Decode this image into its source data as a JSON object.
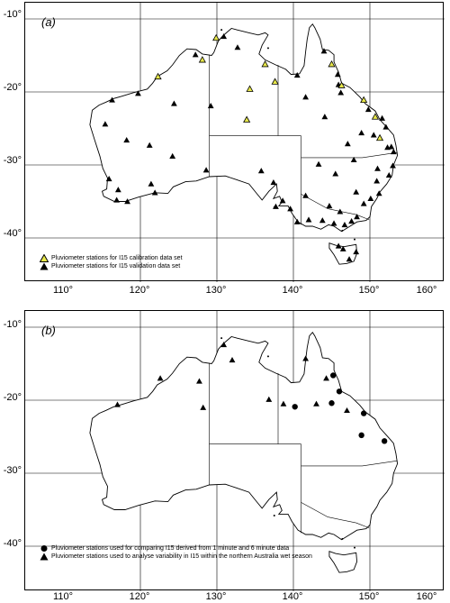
{
  "panels": [
    {
      "label": "(a)",
      "lat_ticks": [
        "-10°",
        "-20°",
        "-30°",
        "-40°"
      ],
      "legend": [
        {
          "symbol": "triangle-yellow-icon",
          "text": "Pluviometer stations for I15 calibration data set"
        },
        {
          "symbol": "triangle-black-icon",
          "text": "Pluviometer stations for I15 validation data set"
        }
      ]
    },
    {
      "label": "(b)",
      "lat_ticks": [
        "-10°",
        "-20°",
        "-30°",
        "-40°"
      ],
      "legend": [
        {
          "symbol": "circle-black-icon",
          "text": "Pluviometer stations used for comparing I15 derived from 1 minute and 6 minute data"
        },
        {
          "symbol": "triangle-black-icon",
          "text": "Pluviometer stations used to analyse variability in I15 within the northern Australia wet season"
        }
      ]
    }
  ],
  "lon_ticks": [
    "110°",
    "120°",
    "130°",
    "140°",
    "150°",
    "160°"
  ],
  "colors": {
    "calibration_fill": "#e8e84a",
    "marker": "#000000",
    "coast": "#000000",
    "grid": "#000000"
  },
  "stations_a_calibration": [
    [
      129.9,
      -12.6
    ],
    [
      128.1,
      -15.6
    ],
    [
      122.3,
      -17.9
    ],
    [
      136.3,
      -16.2
    ],
    [
      134.3,
      -19.6
    ],
    [
      137.6,
      -18.6
    ],
    [
      133.9,
      -23.8
    ],
    [
      145.0,
      -16.2
    ],
    [
      146.3,
      -19.1
    ],
    [
      149.2,
      -21.1
    ],
    [
      151.3,
      -26.3
    ],
    [
      150.7,
      -23.4
    ]
  ],
  "stations_a_validation": [
    [
      130.9,
      -12.4
    ],
    [
      127.2,
      -14.9
    ],
    [
      124.4,
      -21.6
    ],
    [
      129.2,
      -21.9
    ],
    [
      116.3,
      -21.1
    ],
    [
      115.4,
      -24.4
    ],
    [
      118.2,
      -26.6
    ],
    [
      121.2,
      -27.3
    ],
    [
      115.9,
      -31.9
    ],
    [
      117.1,
      -33.4
    ],
    [
      118.3,
      -35.0
    ],
    [
      121.4,
      -32.6
    ],
    [
      124.2,
      -28.8
    ],
    [
      128.6,
      -30.7
    ],
    [
      135.8,
      -30.8
    ],
    [
      137.4,
      -32.4
    ],
    [
      138.6,
      -34.9
    ],
    [
      140.5,
      -37.8
    ],
    [
      141.6,
      -34.2
    ],
    [
      143.3,
      -29.9
    ],
    [
      145.5,
      -31.2
    ],
    [
      144.7,
      -35.6
    ],
    [
      146.1,
      -36.4
    ],
    [
      147.6,
      -37.7
    ],
    [
      148.2,
      -33.7
    ],
    [
      149.2,
      -35.3
    ],
    [
      150.1,
      -34.6
    ],
    [
      151.2,
      -33.9
    ],
    [
      152.5,
      -31.4
    ],
    [
      153.1,
      -28.2
    ],
    [
      152.8,
      -27.5
    ],
    [
      150.9,
      -32.2
    ],
    [
      147.9,
      -29.3
    ],
    [
      147.1,
      -27.1
    ],
    [
      148.9,
      -25.6
    ],
    [
      144.1,
      -23.4
    ],
    [
      141.6,
      -20.7
    ],
    [
      140.5,
      -17.7
    ],
    [
      144.0,
      -14.4
    ],
    [
      145.8,
      -17.6
    ],
    [
      146.2,
      -20.1
    ],
    [
      150.5,
      -25.9
    ],
    [
      152.3,
      -27.6
    ],
    [
      153.0,
      -30.1
    ],
    [
      147.3,
      -42.9
    ],
    [
      145.9,
      -41.1
    ],
    [
      146.5,
      -41.5
    ],
    [
      148.2,
      -41.9
    ],
    [
      151.0,
      -30.5
    ],
    [
      142.0,
      -37.5
    ],
    [
      143.8,
      -37.6
    ],
    [
      145.3,
      -38.0
    ],
    [
      146.7,
      -38.2
    ],
    [
      148.3,
      -37.1
    ],
    [
      139.6,
      -36.0
    ],
    [
      137.7,
      -35.7
    ],
    [
      116.9,
      -34.8
    ],
    [
      121.9,
      -33.8
    ],
    [
      119.7,
      -20.2
    ],
    [
      132.7,
      -13.9
    ],
    [
      145.9,
      -19.0
    ],
    [
      152.1,
      -24.8
    ],
    [
      151.6,
      -23.6
    ],
    [
      149.8,
      -22.4
    ]
  ],
  "stations_b_circle": [
    [
      145.2,
      -16.6
    ],
    [
      146.0,
      -18.8
    ],
    [
      140.2,
      -20.9
    ],
    [
      145.0,
      -20.4
    ],
    [
      149.2,
      -21.8
    ],
    [
      148.9,
      -24.8
    ],
    [
      151.9,
      -25.6
    ]
  ],
  "stations_b_triangle": [
    [
      130.9,
      -12.4
    ],
    [
      132.0,
      -14.5
    ],
    [
      127.7,
      -17.4
    ],
    [
      122.6,
      -17.0
    ],
    [
      117.0,
      -20.6
    ],
    [
      128.2,
      -21.0
    ],
    [
      136.8,
      -19.9
    ],
    [
      138.7,
      -20.5
    ],
    [
      143.0,
      -20.5
    ],
    [
      144.3,
      -17.0
    ],
    [
      147.0,
      -21.4
    ],
    [
      141.6,
      -14.3
    ]
  ]
}
